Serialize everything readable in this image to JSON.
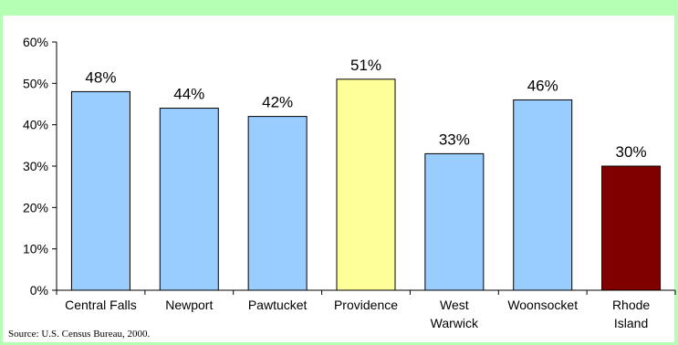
{
  "chart_data": {
    "type": "bar",
    "categories": [
      [
        "Central Falls"
      ],
      [
        "Newport"
      ],
      [
        "Pawtucket"
      ],
      [
        "Providence"
      ],
      [
        "West",
        "Warwick"
      ],
      [
        "Woonsocket"
      ],
      [
        "Rhode",
        "Island"
      ]
    ],
    "values": [
      48,
      44,
      42,
      51,
      33,
      46,
      30
    ],
    "data_labels": [
      "48%",
      "44%",
      "42%",
      "51%",
      "33%",
      "46%",
      "30%"
    ],
    "bar_colors": [
      "#99ccff",
      "#99ccff",
      "#99ccff",
      "#ffff99",
      "#99ccff",
      "#99ccff",
      "#800000"
    ],
    "ylim": [
      0,
      60
    ],
    "yticks": [
      0,
      10,
      20,
      30,
      40,
      50,
      60
    ],
    "ytick_labels": [
      "0%",
      "10%",
      "20%",
      "30%",
      "40%",
      "50%",
      "60%"
    ],
    "grid": false,
    "title": "",
    "xlabel": "",
    "ylabel": ""
  },
  "source_note": "Source: U.S. Census Bureau, 2000.",
  "colors": {
    "frame": "#b3ffb3",
    "bar_default": "#99ccff",
    "bar_highlight": "#ffff99",
    "bar_state": "#800000"
  }
}
